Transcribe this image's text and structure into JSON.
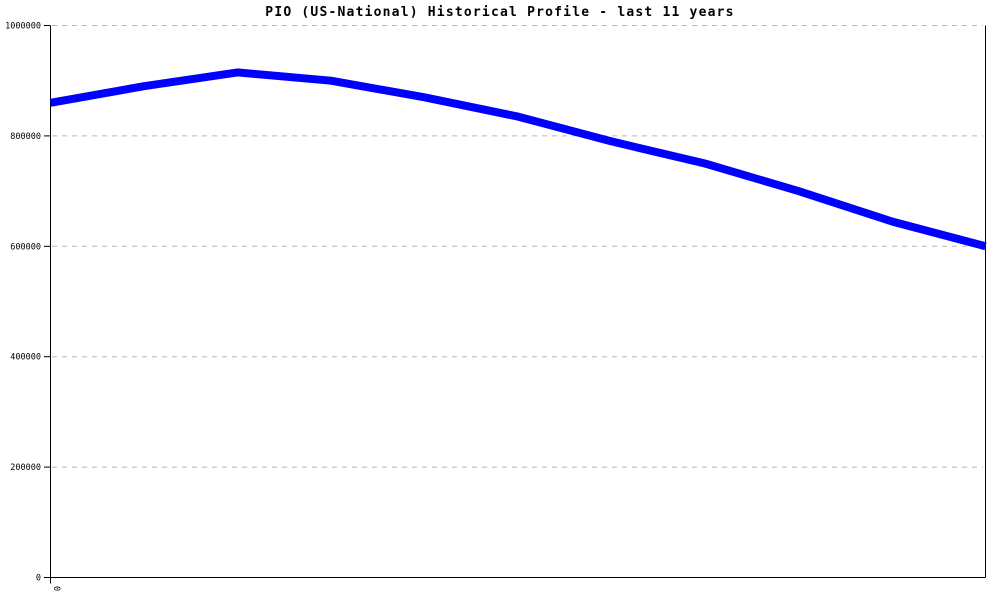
{
  "chart_data": {
    "type": "line",
    "title": "PIO (US-National) Historical Profile - last 11 years",
    "xlabel": "",
    "ylabel": "",
    "x": [
      0,
      1,
      2,
      3,
      4,
      5,
      6,
      7,
      8,
      9,
      10
    ],
    "series": [
      {
        "name": "PIO (US-National)",
        "color": "#0000ff",
        "stroke_width": 8,
        "values": [
          860000,
          890000,
          915000,
          900000,
          870000,
          835000,
          790000,
          750000,
          700000,
          645000,
          600000
        ]
      }
    ],
    "ylim": [
      0,
      1000000
    ],
    "y_ticks": [
      {
        "value": 0,
        "label": "0"
      },
      {
        "value": 200000,
        "label": "200000"
      },
      {
        "value": 400000,
        "label": "400000"
      },
      {
        "value": 600000,
        "label": "600000"
      },
      {
        "value": 800000,
        "label": "800000"
      },
      {
        "value": 1000000,
        "label": "1000000"
      }
    ],
    "x_ticks": [
      {
        "value": 0,
        "label": "0"
      }
    ],
    "grid": "horizontal-dashed",
    "legend": "none",
    "colors": {
      "axis": "#000000",
      "grid": "#b8b8b8",
      "background": "#ffffff",
      "text": "#000000"
    }
  }
}
